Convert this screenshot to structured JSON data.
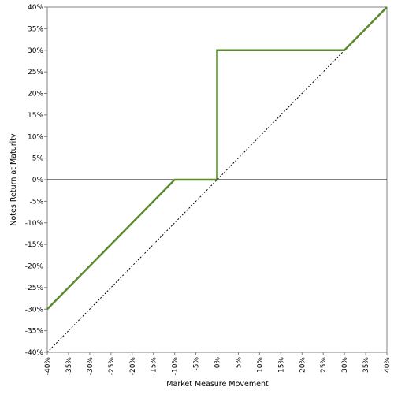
{
  "chart_data": {
    "type": "line",
    "title": "",
    "xlabel": "Market Measure Movement",
    "ylabel": "Notes Return at Maturity",
    "xlim": [
      -40,
      40
    ],
    "ylim": [
      -40,
      40
    ],
    "x_ticks": [
      -40,
      -35,
      -30,
      -25,
      -20,
      -15,
      -10,
      -5,
      0,
      5,
      10,
      15,
      20,
      25,
      30,
      35,
      40
    ],
    "y_ticks": [
      40,
      35,
      30,
      25,
      20,
      15,
      10,
      5,
      0,
      -5,
      -10,
      -15,
      -20,
      -25,
      -30,
      -35,
      -40
    ],
    "x_tick_labels": [
      "-40%",
      "-35%",
      "-30%",
      "-25%",
      "-20%",
      "-15%",
      "-10%",
      "-5%",
      "0%",
      "5%",
      "10%",
      "15%",
      "20%",
      "25%",
      "30%",
      "35%",
      "40%"
    ],
    "y_tick_labels": [
      "40%",
      "35%",
      "30%",
      "25%",
      "20%",
      "15%",
      "10%",
      "5%",
      "0%",
      "-5%",
      "-10%",
      "-15%",
      "-20%",
      "-25%",
      "-30%",
      "-35%",
      "-40%"
    ],
    "grid": false,
    "legend": "none",
    "zero_line": true,
    "series": [
      {
        "style": "solid",
        "color": "#5b8a2e",
        "points": [
          [
            -40,
            -30
          ],
          [
            -10,
            0
          ],
          [
            0,
            0
          ],
          [
            0,
            30
          ],
          [
            30,
            30
          ],
          [
            40,
            40
          ]
        ]
      },
      {
        "style": "dotted",
        "color": "#000000",
        "points": [
          [
            -40,
            -40
          ],
          [
            40,
            40
          ]
        ]
      }
    ]
  }
}
